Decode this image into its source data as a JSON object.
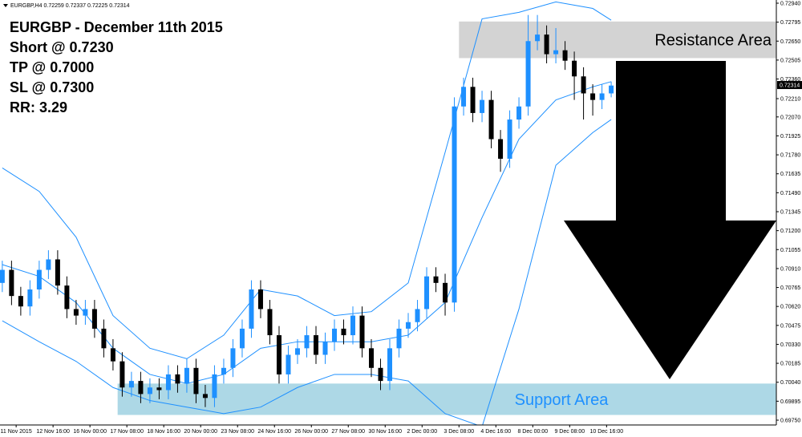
{
  "chart_data": {
    "type": "candlestick",
    "header": "EURGBP,H4 0.72259 0.72337 0.72225 0.72314",
    "notes": [
      "EURGBP - December 11th 2015",
      "Short @ 0.7230",
      "TP @ 0.7000",
      "SL @ 0.7300",
      "RR: 3.29"
    ],
    "up_color": "#1e90ff",
    "down_color": "#000000",
    "band_color": "#1e90ff",
    "x": [
      0,
      2,
      4,
      6,
      8,
      10,
      12,
      14,
      16,
      18,
      20,
      22,
      24,
      26,
      28,
      30,
      32,
      34,
      36,
      38,
      40,
      42,
      44,
      46,
      48,
      50,
      52,
      54,
      56,
      58,
      60,
      62,
      64,
      66,
      68,
      70,
      72,
      74,
      76,
      78,
      80,
      82,
      84,
      86,
      88,
      90,
      92,
      94,
      96,
      98,
      100,
      102,
      104,
      106,
      108,
      110,
      112,
      114,
      116,
      118,
      120,
      122,
      124,
      126,
      128,
      130,
      132
    ],
    "open": [
      0.708,
      0.709,
      0.707,
      0.7062,
      0.7075,
      0.709,
      0.7098,
      0.7078,
      0.706,
      0.7055,
      0.706,
      0.7045,
      0.703,
      0.702,
      0.7,
      0.7005,
      0.6995,
      0.7,
      0.6998,
      0.701,
      0.7003,
      0.7015,
      0.6995,
      0.6992,
      0.701,
      0.7015,
      0.703,
      0.7045,
      0.7075,
      0.706,
      0.704,
      0.701,
      0.7025,
      0.703,
      0.704,
      0.7025,
      0.7035,
      0.7045,
      0.704,
      0.7055,
      0.703,
      0.7015,
      0.7005,
      0.703,
      0.7045,
      0.705,
      0.706,
      0.7085,
      0.708,
      0.7065,
      0.7215,
      0.723,
      0.721,
      0.722,
      0.719,
      0.7175,
      0.7205,
      0.7215,
      0.7265,
      0.727,
      0.7255,
      0.7258,
      0.725,
      0.7238,
      0.7225,
      0.722,
      0.7225
    ],
    "high": [
      0.7097,
      0.7097,
      0.7077,
      0.7082,
      0.7097,
      0.7105,
      0.7105,
      0.7085,
      0.7067,
      0.7067,
      0.7067,
      0.7052,
      0.7037,
      0.7027,
      0.7012,
      0.7012,
      0.7007,
      0.7007,
      0.7017,
      0.7017,
      0.7022,
      0.7022,
      0.7002,
      0.7017,
      0.7022,
      0.7037,
      0.7052,
      0.7082,
      0.7082,
      0.7067,
      0.7047,
      0.7032,
      0.7037,
      0.7047,
      0.7047,
      0.7042,
      0.7052,
      0.7052,
      0.7062,
      0.7062,
      0.7037,
      0.7022,
      0.7037,
      0.7052,
      0.7057,
      0.7067,
      0.7092,
      0.7092,
      0.7087,
      0.7222,
      0.7237,
      0.7237,
      0.7227,
      0.7227,
      0.7197,
      0.7212,
      0.7222,
      0.7285,
      0.7285,
      0.7277,
      0.7275,
      0.7265,
      0.7257,
      0.7245,
      0.7232,
      0.7232,
      0.7234
    ],
    "low": [
      0.7073,
      0.7063,
      0.7055,
      0.7055,
      0.7068,
      0.7083,
      0.7071,
      0.7053,
      0.7048,
      0.7048,
      0.7038,
      0.7023,
      0.7013,
      0.6993,
      0.6993,
      0.6988,
      0.6988,
      0.6991,
      0.6991,
      0.6996,
      0.6996,
      0.6988,
      0.6985,
      0.6985,
      0.7003,
      0.7008,
      0.7023,
      0.7038,
      0.7053,
      0.7033,
      0.7003,
      0.7003,
      0.7018,
      0.7023,
      0.7018,
      0.7018,
      0.7028,
      0.7033,
      0.7033,
      0.7023,
      0.7008,
      0.6998,
      0.6998,
      0.7023,
      0.7038,
      0.7043,
      0.7053,
      0.7073,
      0.7055,
      0.7058,
      0.7208,
      0.7203,
      0.7203,
      0.7183,
      0.7165,
      0.7168,
      0.7198,
      0.7208,
      0.7258,
      0.7248,
      0.7248,
      0.7243,
      0.722,
      0.7205,
      0.7208,
      0.7213,
      0.7222
    ],
    "close": [
      0.709,
      0.707,
      0.7062,
      0.7075,
      0.709,
      0.7098,
      0.7078,
      0.706,
      0.7055,
      0.706,
      0.7045,
      0.703,
      0.702,
      0.7,
      0.7005,
      0.6995,
      0.7,
      0.6998,
      0.701,
      0.7003,
      0.7015,
      0.6995,
      0.6992,
      0.701,
      0.7015,
      0.703,
      0.7045,
      0.7075,
      0.706,
      0.704,
      0.701,
      0.7025,
      0.703,
      0.704,
      0.7025,
      0.7035,
      0.7045,
      0.704,
      0.7055,
      0.703,
      0.7015,
      0.7005,
      0.703,
      0.7045,
      0.705,
      0.706,
      0.7085,
      0.708,
      0.7065,
      0.7215,
      0.723,
      0.721,
      0.722,
      0.719,
      0.7175,
      0.7205,
      0.7215,
      0.7265,
      0.727,
      0.7255,
      0.7258,
      0.725,
      0.7238,
      0.7225,
      0.722,
      0.7225,
      0.7231
    ],
    "bands": {
      "x": [
        0,
        8,
        16,
        24,
        32,
        40,
        48,
        56,
        64,
        72,
        80,
        88,
        96,
        104,
        112,
        120,
        128,
        132
      ],
      "upper": [
        0.7168,
        0.715,
        0.7115,
        0.7055,
        0.703,
        0.7022,
        0.704,
        0.7075,
        0.707,
        0.7055,
        0.7058,
        0.708,
        0.718,
        0.7282,
        0.7287,
        0.7295,
        0.729,
        0.7281
      ],
      "middle": [
        0.7094,
        0.7085,
        0.7065,
        0.703,
        0.701,
        0.7003,
        0.701,
        0.703,
        0.7035,
        0.7035,
        0.7035,
        0.704,
        0.7065,
        0.713,
        0.719,
        0.722,
        0.723,
        0.7234
      ],
      "lower": [
        0.7051,
        0.7035,
        0.702,
        0.7,
        0.699,
        0.6985,
        0.698,
        0.6985,
        0.7,
        0.701,
        0.701,
        0.7005,
        0.698,
        0.697,
        0.706,
        0.717,
        0.7195,
        0.7205
      ]
    },
    "resistance_zone": {
      "label": "Resistance Area",
      "range": [
        0.7252,
        0.728
      ],
      "start": 99,
      "color": "#d3d3d3"
    },
    "support_zone": {
      "label": "Support Area",
      "range": [
        0.6979,
        0.7003
      ],
      "start": 25,
      "color": "#add8e6",
      "label_color": "#1e90ff"
    },
    "last_price": {
      "value": 0.72314,
      "label": "0.72314"
    },
    "xlim": [
      -0.5,
      167.8
    ],
    "ylim": [
      0.6975,
      0.7294
    ],
    "xticks": [
      {
        "value": 3,
        "label": "11 Nov 2015"
      },
      {
        "value": 11,
        "label": "12 Nov 16:00"
      },
      {
        "value": 19,
        "label": "16 Nov 00:00"
      },
      {
        "value": 27,
        "label": "17 Nov 08:00"
      },
      {
        "value": 35,
        "label": "18 Nov 16:00"
      },
      {
        "value": 43,
        "label": "20 Nov 00:00"
      },
      {
        "value": 51,
        "label": "23 Nov 08:00"
      },
      {
        "value": 59,
        "label": "24 Nov 16:00"
      },
      {
        "value": 67,
        "label": "26 Nov 00:00"
      },
      {
        "value": 75,
        "label": "27 Nov 08:00"
      },
      {
        "value": 83,
        "label": "30 Nov 16:00"
      },
      {
        "value": 91,
        "label": "2 Dec 00:00"
      },
      {
        "value": 99,
        "label": "3 Dec 08:00"
      },
      {
        "value": 107,
        "label": "4 Dec 16:00"
      },
      {
        "value": 115,
        "label": "8 Dec 00:00"
      },
      {
        "value": 123,
        "label": "9 Dec 08:00"
      },
      {
        "value": 131,
        "label": "10 Dec 16:00"
      }
    ],
    "yticks": [
      {
        "value": 0.7294,
        "label": "0.72940"
      },
      {
        "value": 0.72795,
        "label": "0.72795"
      },
      {
        "value": 0.7265,
        "label": "0.72650"
      },
      {
        "value": 0.72505,
        "label": "0.72505"
      },
      {
        "value": 0.7236,
        "label": "0.72360"
      },
      {
        "value": 0.7221,
        "label": "0.72210"
      },
      {
        "value": 0.7207,
        "label": "0.72070"
      },
      {
        "value": 0.71925,
        "label": "0.71925"
      },
      {
        "value": 0.7178,
        "label": "0.71780"
      },
      {
        "value": 0.71635,
        "label": "0.71635"
      },
      {
        "value": 0.7149,
        "label": "0.71490"
      },
      {
        "value": 0.71345,
        "label": "0.71345"
      },
      {
        "value": 0.712,
        "label": "0.71200"
      },
      {
        "value": 0.71055,
        "label": "0.71055"
      },
      {
        "value": 0.7091,
        "label": "0.70910"
      },
      {
        "value": 0.70765,
        "label": "0.70765"
      },
      {
        "value": 0.7062,
        "label": "0.70620"
      },
      {
        "value": 0.70475,
        "label": "0.70475"
      },
      {
        "value": 0.7033,
        "label": "0.70330"
      },
      {
        "value": 0.70185,
        "label": "0.70185"
      },
      {
        "value": 0.7004,
        "label": "0.70040"
      },
      {
        "value": 0.69895,
        "label": "0.69895"
      },
      {
        "value": 0.6975,
        "label": "0.69750"
      }
    ]
  }
}
